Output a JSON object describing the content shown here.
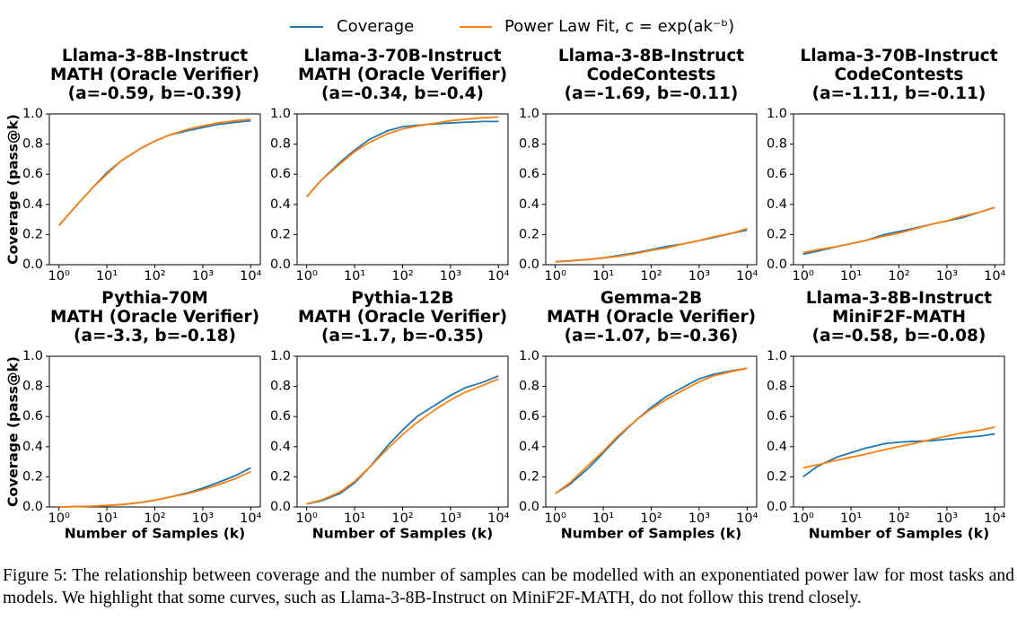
{
  "chart_data": [
    {
      "type": "line",
      "title": [
        "Llama-3-8B-Instruct",
        "MATH (Oracle Verifier)",
        "(a=-0.59, b=-0.39)"
      ],
      "ylabel": "Coverage (pass@k)",
      "xscale": "log",
      "xlim": [
        0.631,
        15849
      ],
      "ylim": [
        0,
        1
      ],
      "xticks": [
        {
          "value": 1,
          "label": "10⁰"
        },
        {
          "value": 10,
          "label": "10¹"
        },
        {
          "value": 100,
          "label": "10²"
        },
        {
          "value": 1000,
          "label": "10³"
        },
        {
          "value": 10000,
          "label": "10⁴"
        }
      ],
      "yticks": [
        {
          "value": 0,
          "label": "0.0"
        },
        0.2,
        0.4,
        0.6,
        0.8,
        {
          "value": 1,
          "label": "1.0"
        }
      ],
      "x": [
        1,
        2,
        5,
        10,
        20,
        50,
        100,
        200,
        500,
        1000,
        2000,
        5000,
        10000
      ],
      "series": [
        {
          "name": "Coverage",
          "color": "#1f77b4",
          "values": [
            0.26,
            0.37,
            0.51,
            0.61,
            0.69,
            0.77,
            0.82,
            0.86,
            0.89,
            0.91,
            0.93,
            0.945,
            0.955
          ]
        },
        {
          "name": "Power Law Fit, c = exp(ak⁻ᵇ)",
          "color": "#ff7f0e",
          "values": [
            0.26,
            0.37,
            0.51,
            0.6,
            0.69,
            0.77,
            0.82,
            0.86,
            0.9,
            0.92,
            0.94,
            0.955,
            0.965
          ]
        }
      ]
    },
    {
      "type": "line",
      "title": [
        "Llama-3-70B-Instruct",
        "MATH (Oracle Verifier)",
        "(a=-0.34, b=-0.4)"
      ],
      "xscale": "log",
      "xlim": [
        0.631,
        15849
      ],
      "ylim": [
        0,
        1
      ],
      "xticks": [
        {
          "value": 1,
          "label": "10⁰"
        },
        {
          "value": 10,
          "label": "10¹"
        },
        {
          "value": 100,
          "label": "10²"
        },
        {
          "value": 1000,
          "label": "10³"
        },
        {
          "value": 10000,
          "label": "10⁴"
        }
      ],
      "yticks": [
        {
          "value": 0,
          "label": "0.0"
        },
        0.2,
        0.4,
        0.6,
        0.8,
        {
          "value": 1,
          "label": "1.0"
        }
      ],
      "x": [
        1,
        2,
        5,
        10,
        20,
        50,
        100,
        200,
        500,
        1000,
        2000,
        5000,
        10000
      ],
      "series": [
        {
          "name": "Coverage",
          "color": "#1f77b4",
          "values": [
            0.45,
            0.56,
            0.68,
            0.76,
            0.83,
            0.89,
            0.915,
            0.925,
            0.935,
            0.94,
            0.945,
            0.95,
            0.95
          ]
        },
        {
          "name": "Power Law Fit, c = exp(ak⁻ᵇ)",
          "color": "#ff7f0e",
          "values": [
            0.45,
            0.56,
            0.67,
            0.75,
            0.81,
            0.87,
            0.9,
            0.92,
            0.94,
            0.955,
            0.965,
            0.975,
            0.98
          ]
        }
      ]
    },
    {
      "type": "line",
      "title": [
        "Llama-3-8B-Instruct",
        "CodeContests",
        "(a=-1.69, b=-0.11)"
      ],
      "xscale": "log",
      "xlim": [
        0.631,
        15849
      ],
      "ylim": [
        0,
        1
      ],
      "xticks": [
        {
          "value": 1,
          "label": "10⁰"
        },
        {
          "value": 10,
          "label": "10¹"
        },
        {
          "value": 100,
          "label": "10²"
        },
        {
          "value": 1000,
          "label": "10³"
        },
        {
          "value": 10000,
          "label": "10⁴"
        }
      ],
      "yticks": [
        {
          "value": 0,
          "label": "0.0"
        },
        0.2,
        0.4,
        0.6,
        0.8,
        {
          "value": 1,
          "label": "1.0"
        }
      ],
      "x": [
        1,
        2,
        5,
        10,
        20,
        50,
        100,
        200,
        500,
        1000,
        2000,
        5000,
        10000
      ],
      "series": [
        {
          "name": "Coverage",
          "color": "#1f77b4",
          "values": [
            0.02,
            0.025,
            0.035,
            0.045,
            0.06,
            0.08,
            0.1,
            0.12,
            0.14,
            0.16,
            0.18,
            0.21,
            0.23
          ]
        },
        {
          "name": "Power Law Fit, c = exp(ak⁻ᵇ)",
          "color": "#ff7f0e",
          "values": [
            0.02,
            0.026,
            0.036,
            0.045,
            0.055,
            0.075,
            0.095,
            0.11,
            0.14,
            0.16,
            0.185,
            0.21,
            0.24
          ]
        }
      ]
    },
    {
      "type": "line",
      "title": [
        "Llama-3-70B-Instruct",
        "CodeContests",
        "(a=-1.11, b=-0.11)"
      ],
      "xscale": "log",
      "xlim": [
        0.631,
        15849
      ],
      "ylim": [
        0,
        1
      ],
      "xticks": [
        {
          "value": 1,
          "label": "10⁰"
        },
        {
          "value": 10,
          "label": "10¹"
        },
        {
          "value": 100,
          "label": "10²"
        },
        {
          "value": 1000,
          "label": "10³"
        },
        {
          "value": 10000,
          "label": "10⁴"
        }
      ],
      "yticks": [
        {
          "value": 0,
          "label": "0.0"
        },
        0.2,
        0.4,
        0.6,
        0.8,
        {
          "value": 1,
          "label": "1.0"
        }
      ],
      "x": [
        1,
        2,
        5,
        10,
        20,
        50,
        100,
        200,
        500,
        1000,
        2000,
        5000,
        10000
      ],
      "series": [
        {
          "name": "Coverage",
          "color": "#1f77b4",
          "values": [
            0.07,
            0.09,
            0.12,
            0.14,
            0.16,
            0.2,
            0.22,
            0.24,
            0.27,
            0.29,
            0.31,
            0.35,
            0.38
          ]
        },
        {
          "name": "Power Law Fit, c = exp(ak⁻ᵇ)",
          "color": "#ff7f0e",
          "values": [
            0.08,
            0.1,
            0.12,
            0.14,
            0.16,
            0.19,
            0.21,
            0.235,
            0.27,
            0.29,
            0.32,
            0.35,
            0.38
          ]
        }
      ]
    },
    {
      "type": "line",
      "title": [
        "Pythia-70M",
        "MATH (Oracle Verifier)",
        "(a=-3.3, b=-0.18)"
      ],
      "ylabel": "Coverage (pass@k)",
      "xlabel": "Number of Samples (k)",
      "xscale": "log",
      "xlim": [
        0.631,
        15849
      ],
      "ylim": [
        0,
        1
      ],
      "xticks": [
        {
          "value": 1,
          "label": "10⁰"
        },
        {
          "value": 10,
          "label": "10¹"
        },
        {
          "value": 100,
          "label": "10²"
        },
        {
          "value": 1000,
          "label": "10³"
        },
        {
          "value": 10000,
          "label": "10⁴"
        }
      ],
      "yticks": [
        {
          "value": 0,
          "label": "0.0"
        },
        0.2,
        0.4,
        0.6,
        0.8,
        {
          "value": 1,
          "label": "1.0"
        }
      ],
      "x": [
        1,
        2,
        5,
        10,
        20,
        50,
        100,
        200,
        500,
        1000,
        2000,
        5000,
        10000
      ],
      "series": [
        {
          "name": "Coverage",
          "color": "#1f77b4",
          "values": [
            0,
            0.002,
            0.005,
            0.01,
            0.015,
            0.03,
            0.045,
            0.065,
            0.095,
            0.125,
            0.16,
            0.21,
            0.26
          ]
        },
        {
          "name": "Power Law Fit, c = exp(ak⁻ᵇ)",
          "color": "#ff7f0e",
          "values": [
            0,
            0.002,
            0.005,
            0.01,
            0.016,
            0.03,
            0.045,
            0.065,
            0.09,
            0.115,
            0.145,
            0.19,
            0.235
          ]
        }
      ]
    },
    {
      "type": "line",
      "title": [
        "Pythia-12B",
        "MATH (Oracle Verifier)",
        "(a=-1.7, b=-0.35)"
      ],
      "xlabel": "Number of Samples (k)",
      "xscale": "log",
      "xlim": [
        0.631,
        15849
      ],
      "ylim": [
        0,
        1
      ],
      "xticks": [
        {
          "value": 1,
          "label": "10⁰"
        },
        {
          "value": 10,
          "label": "10¹"
        },
        {
          "value": 100,
          "label": "10²"
        },
        {
          "value": 1000,
          "label": "10³"
        },
        {
          "value": 10000,
          "label": "10⁴"
        }
      ],
      "yticks": [
        {
          "value": 0,
          "label": "0.0"
        },
        0.2,
        0.4,
        0.6,
        0.8,
        {
          "value": 1,
          "label": "1.0"
        }
      ],
      "x": [
        1,
        2,
        5,
        10,
        20,
        50,
        100,
        200,
        500,
        1000,
        2000,
        5000,
        10000
      ],
      "series": [
        {
          "name": "Coverage",
          "color": "#1f77b4",
          "values": [
            0.02,
            0.04,
            0.09,
            0.16,
            0.26,
            0.41,
            0.51,
            0.6,
            0.68,
            0.74,
            0.79,
            0.83,
            0.87
          ]
        },
        {
          "name": "Power Law Fit, c = exp(ak⁻ᵇ)",
          "color": "#ff7f0e",
          "values": [
            0.02,
            0.045,
            0.1,
            0.17,
            0.26,
            0.39,
            0.48,
            0.56,
            0.65,
            0.71,
            0.76,
            0.81,
            0.85
          ]
        }
      ]
    },
    {
      "type": "line",
      "title": [
        "Gemma-2B",
        "MATH (Oracle Verifier)",
        "(a=-1.07, b=-0.36)"
      ],
      "xlabel": "Number of Samples (k)",
      "xscale": "log",
      "xlim": [
        0.631,
        15849
      ],
      "ylim": [
        0,
        1
      ],
      "xticks": [
        {
          "value": 1,
          "label": "10⁰"
        },
        {
          "value": 10,
          "label": "10¹"
        },
        {
          "value": 100,
          "label": "10²"
        },
        {
          "value": 1000,
          "label": "10³"
        },
        {
          "value": 10000,
          "label": "10⁴"
        }
      ],
      "yticks": [
        {
          "value": 0,
          "label": "0.0"
        },
        0.2,
        0.4,
        0.6,
        0.8,
        {
          "value": 1,
          "label": "1.0"
        }
      ],
      "x": [
        1,
        2,
        5,
        10,
        20,
        50,
        100,
        200,
        500,
        1000,
        2000,
        5000,
        10000
      ],
      "series": [
        {
          "name": "Coverage",
          "color": "#1f77b4",
          "values": [
            0.09,
            0.15,
            0.26,
            0.36,
            0.46,
            0.58,
            0.66,
            0.73,
            0.8,
            0.85,
            0.88,
            0.905,
            0.92
          ]
        },
        {
          "name": "Power Law Fit, c = exp(ak⁻ᵇ)",
          "color": "#ff7f0e",
          "values": [
            0.09,
            0.16,
            0.28,
            0.37,
            0.47,
            0.58,
            0.65,
            0.71,
            0.78,
            0.83,
            0.87,
            0.9,
            0.92
          ]
        }
      ]
    },
    {
      "type": "line",
      "title": [
        "Llama-3-8B-Instruct",
        "MiniF2F-MATH",
        "(a=-0.58, b=-0.08)"
      ],
      "xlabel": "Number of Samples (k)",
      "xscale": "log",
      "xlim": [
        0.631,
        15849
      ],
      "ylim": [
        0,
        1
      ],
      "xticks": [
        {
          "value": 1,
          "label": "10⁰"
        },
        {
          "value": 10,
          "label": "10¹"
        },
        {
          "value": 100,
          "label": "10²"
        },
        {
          "value": 1000,
          "label": "10³"
        },
        {
          "value": 10000,
          "label": "10⁴"
        }
      ],
      "yticks": [
        {
          "value": 0,
          "label": "0.0"
        },
        0.2,
        0.4,
        0.6,
        0.8,
        {
          "value": 1,
          "label": "1.0"
        }
      ],
      "x": [
        1,
        2,
        5,
        10,
        20,
        50,
        100,
        200,
        500,
        1000,
        2000,
        5000,
        10000
      ],
      "series": [
        {
          "name": "Coverage",
          "color": "#1f77b4",
          "values": [
            0.2,
            0.27,
            0.33,
            0.36,
            0.39,
            0.42,
            0.43,
            0.435,
            0.44,
            0.45,
            0.46,
            0.47,
            0.485
          ]
        },
        {
          "name": "Power Law Fit, c = exp(ak⁻ᵇ)",
          "color": "#ff7f0e",
          "values": [
            0.26,
            0.28,
            0.31,
            0.33,
            0.35,
            0.38,
            0.4,
            0.42,
            0.45,
            0.47,
            0.49,
            0.51,
            0.53
          ]
        }
      ]
    }
  ],
  "caption": "Figure 5: The relationship between coverage and the number of samples can be modelled with an exponentiated power law for most tasks and models. We highlight that some curves, such as Llama-3-8B-Instruct on MiniF2F-MATH, do not follow this trend closely."
}
